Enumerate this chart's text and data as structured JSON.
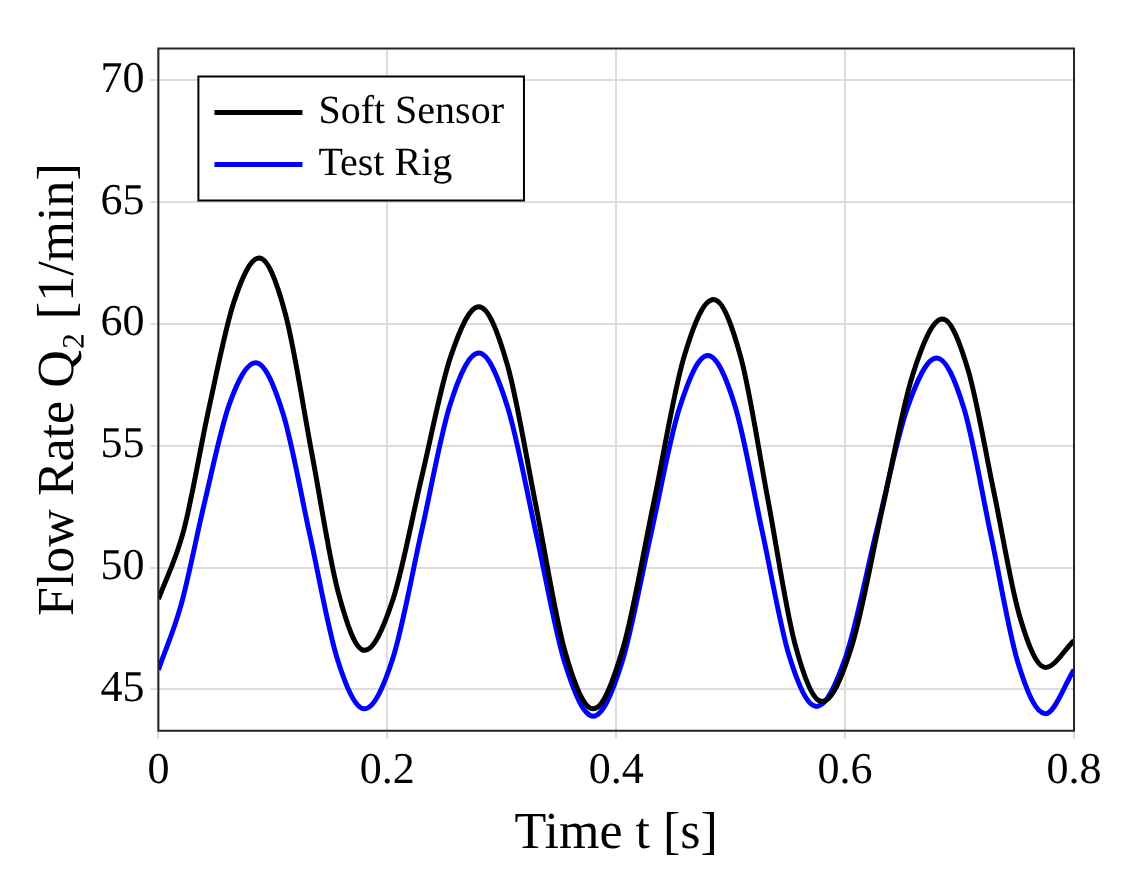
{
  "chart_data": {
    "type": "line",
    "xlabel": "Time t [s]",
    "ylabel": "Flow Rate Q₂ [1/min]",
    "xlim": [
      0,
      0.8
    ],
    "xticks": [
      0,
      0.2,
      0.4,
      0.6,
      0.8
    ],
    "ylim": [
      43.3,
      71.3
    ],
    "yticks": [
      45,
      50,
      55,
      60,
      65,
      70
    ],
    "grid": true,
    "legend": "top left",
    "marker": "none",
    "line_style": "solid",
    "series": [
      {
        "name": "Soft Sensor",
        "color": "#000000",
        "x": [
          0,
          0.022,
          0.044,
          0.066,
          0.088,
          0.111,
          0.134,
          0.157,
          0.18,
          0.205,
          0.23,
          0.255,
          0.28,
          0.305,
          0.33,
          0.355,
          0.38,
          0.406,
          0.4325,
          0.459,
          0.485,
          0.509,
          0.5325,
          0.556,
          0.58,
          0.606,
          0.6325,
          0.659,
          0.685,
          0.7075,
          0.73,
          0.7525,
          0.775,
          0.8
        ],
        "values": [
          48.7,
          51.5,
          56.5,
          60.9,
          62.7,
          60.4,
          54.7,
          49.0,
          46.6,
          48.7,
          53.7,
          58.6,
          60.7,
          58.3,
          52.5,
          46.6,
          44.2,
          46.7,
          52.6,
          58.6,
          61.0,
          58.6,
          52.8,
          46.9,
          44.5,
          46.8,
          52.4,
          57.9,
          60.2,
          58.1,
          53.1,
          48.0,
          45.9,
          47.0
        ]
      },
      {
        "name": "Test Rig",
        "color": "#0000ff",
        "x": [
          0,
          0.02,
          0.04,
          0.062,
          0.085,
          0.109,
          0.1325,
          0.156,
          0.18,
          0.205,
          0.23,
          0.255,
          0.28,
          0.305,
          0.33,
          0.355,
          0.38,
          0.405,
          0.43,
          0.455,
          0.48,
          0.504,
          0.5275,
          0.551,
          0.575,
          0.601,
          0.6275,
          0.654,
          0.68,
          0.704,
          0.7275,
          0.751,
          0.775,
          0.8
        ],
        "values": [
          45.8,
          48.5,
          52.6,
          56.7,
          58.4,
          56.3,
          51.3,
          46.3,
          44.2,
          46.3,
          51.5,
          56.7,
          58.8,
          56.6,
          51.4,
          46.1,
          43.9,
          46.1,
          51.3,
          56.5,
          58.7,
          56.6,
          51.5,
          46.4,
          44.3,
          46.4,
          51.5,
          56.5,
          58.6,
          56.5,
          51.3,
          46.1,
          44.0,
          45.8
        ]
      }
    ]
  }
}
